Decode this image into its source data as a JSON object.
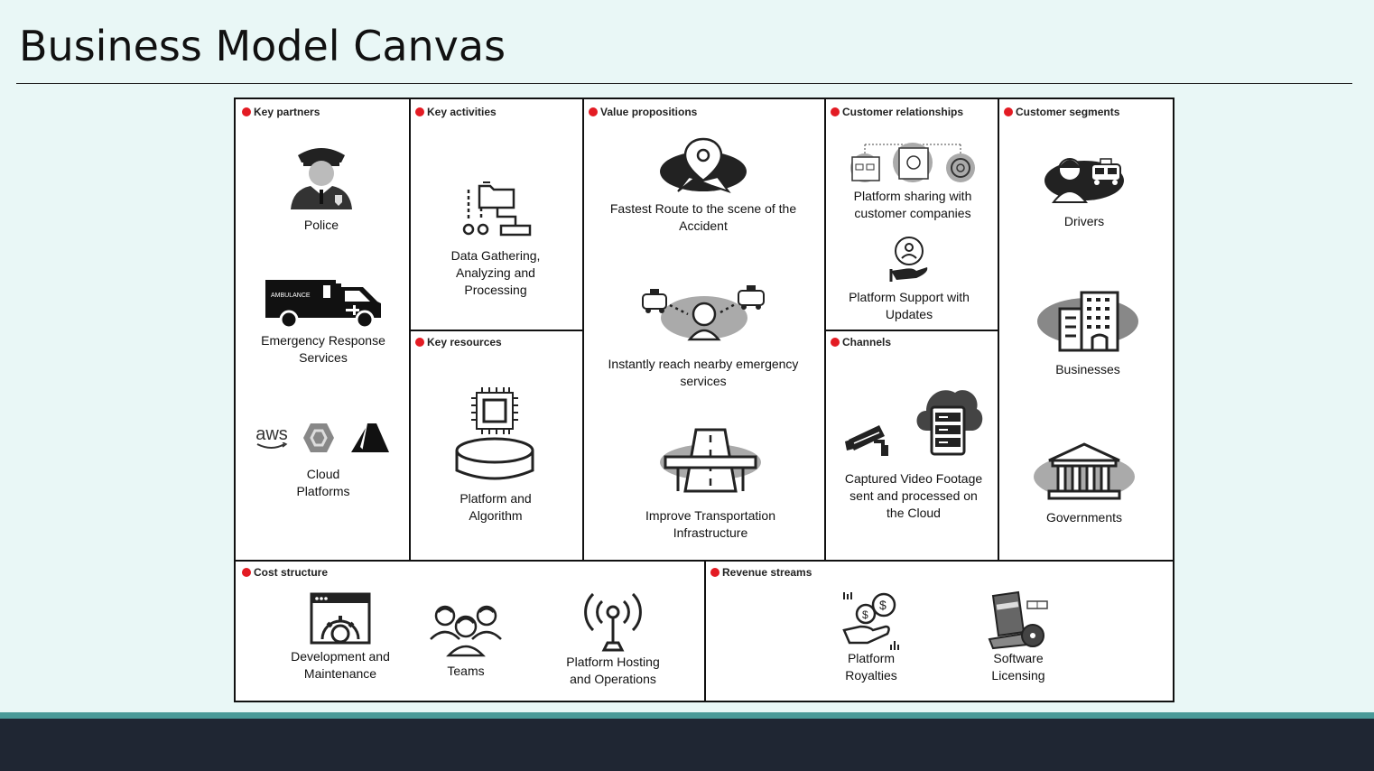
{
  "title": "Business Model Canvas",
  "accent_color": "#e31b23",
  "sections": {
    "key_partners": {
      "label": "Key partners",
      "items": [
        "Police",
        "Emergency Response\nServices",
        "Cloud\nPlatforms"
      ],
      "logos": [
        "aws"
      ]
    },
    "key_activities": {
      "label": "Key activities",
      "items": [
        "Data Gathering,\nAnalyzing and\nProcessing"
      ]
    },
    "key_resources": {
      "label": "Key resources",
      "items": [
        "Platform and\nAlgorithm"
      ]
    },
    "value_propositions": {
      "label": "Value propositions",
      "items": [
        "Fastest Route to the scene of the\nAccident",
        "Instantly reach nearby emergency\nservices",
        "Improve Transportation\nInfrastructure"
      ]
    },
    "customer_relationships": {
      "label": "Customer relationships",
      "items": [
        "Platform sharing with\ncustomer companies",
        "Platform Support with\nUpdates"
      ]
    },
    "channels": {
      "label": "Channels",
      "items": [
        "Captured Video Footage\nsent and processed on\nthe Cloud"
      ]
    },
    "customer_segments": {
      "label": "Customer segments",
      "items": [
        "Drivers",
        "Businesses",
        "Governments"
      ]
    },
    "cost_structure": {
      "label": "Cost structure",
      "items": [
        "Development and\nMaintenance",
        "Teams",
        "Platform Hosting\nand Operations"
      ]
    },
    "revenue_streams": {
      "label": "Revenue streams",
      "items": [
        "Platform\nRoyalties",
        "Software\nLicensing"
      ]
    }
  }
}
